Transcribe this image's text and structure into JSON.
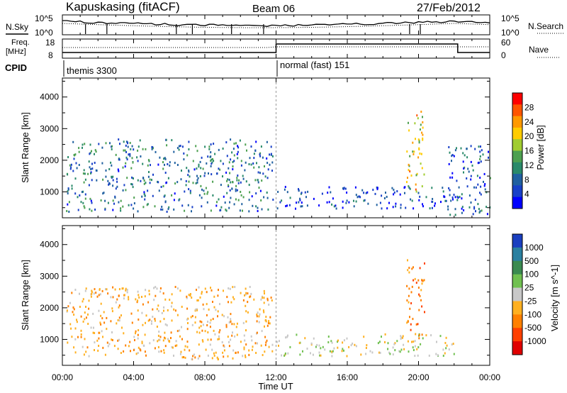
{
  "header": {
    "station": "Kapuskasing (fitACF)",
    "beam": "Beam 06",
    "date": "27/Feb/2012"
  },
  "panels": {
    "nsky": {
      "left_label": "N.Sky",
      "right_label": "N.Search",
      "left_ticks": [
        "10^5",
        "10^0"
      ],
      "right_ticks": [
        "10^5",
        "10^0"
      ]
    },
    "freq": {
      "left_label_1": "Freq.",
      "left_label_2": "[MHz]",
      "right_label": "Nave",
      "left_ticks": [
        "18",
        "8"
      ],
      "right_ticks": [
        "60",
        "0"
      ]
    },
    "cpid": {
      "label": "CPID",
      "modes": [
        {
          "name": "themis 3300",
          "start": "00:00",
          "end": "12:00"
        },
        {
          "name": "normal (fast) 151",
          "start": "12:00",
          "end": "24:00"
        }
      ]
    }
  },
  "time_axis": {
    "label": "Time UT",
    "ticks": [
      "00:00",
      "04:00",
      "08:00",
      "12:00",
      "16:00",
      "20:00",
      "00:00"
    ]
  },
  "colorbars": {
    "power": {
      "label": "Power [dB]",
      "ticks": [
        "28",
        "24",
        "20",
        "16",
        "12",
        "8",
        "4"
      ],
      "colors": [
        "#ff0000",
        "#ff5500",
        "#ff9900",
        "#ffcc00",
        "#a0cc30",
        "#4da050",
        "#2a8a6a",
        "#2060a0",
        "#1840c8",
        "#0000ff"
      ]
    },
    "velocity": {
      "label": "Velocity [m s^-1]",
      "ticks": [
        "1000",
        "500",
        "100",
        "25",
        "-25",
        "-100",
        "-500",
        "-1000"
      ],
      "colors": [
        "#1a3fc0",
        "#2a80a0",
        "#3a8a50",
        "#70c050",
        "#c8c8c8",
        "#ffb020",
        "#ff8000",
        "#ff4000",
        "#e00000"
      ]
    }
  },
  "chart_data": [
    {
      "type": "heatmap",
      "title": "Beam 06",
      "panel": "power",
      "xlabel": "Time UT",
      "ylabel": "Slant Range [km]",
      "x_range_hours": [
        0,
        24
      ],
      "ylim": [
        180,
        4600
      ],
      "yticks": [
        1000,
        2000,
        3000,
        4000
      ],
      "colorbar": {
        "label": "Power [dB]",
        "range": [
          0,
          30
        ]
      },
      "features": [
        {
          "t_start": 0.2,
          "t_end": 11.8,
          "range_min": 400,
          "range_max": 2700,
          "typical_db": 10
        },
        {
          "t_start": 12.0,
          "t_end": 22.0,
          "range_min": 500,
          "range_max": 1200,
          "typical_db": 6
        },
        {
          "t_start": 19.3,
          "t_end": 20.3,
          "range_min": 1000,
          "range_max": 3600,
          "typical_db": 20
        },
        {
          "t_start": 21.6,
          "t_end": 24.0,
          "range_min": 300,
          "range_max": 2500,
          "typical_db": 8
        }
      ]
    },
    {
      "type": "heatmap",
      "panel": "velocity",
      "xlabel": "Time UT",
      "ylabel": "Slant Range [km]",
      "x_range_hours": [
        0,
        24
      ],
      "ylim": [
        180,
        4600
      ],
      "yticks": [
        1000,
        2000,
        3000,
        4000
      ],
      "colorbar": {
        "label": "Velocity [m s^-1]",
        "range": [
          -1000,
          1000
        ]
      },
      "features": [
        {
          "t_start": 0.2,
          "t_end": 11.8,
          "range_min": 400,
          "range_max": 2700,
          "typical_velocity": -100
        },
        {
          "t_start": 12.0,
          "t_end": 22.0,
          "range_min": 500,
          "range_max": 1200,
          "typical_velocity": 0
        },
        {
          "t_start": 19.3,
          "t_end": 20.3,
          "range_min": 1000,
          "range_max": 3600,
          "typical_velocity": -500
        }
      ]
    }
  ]
}
